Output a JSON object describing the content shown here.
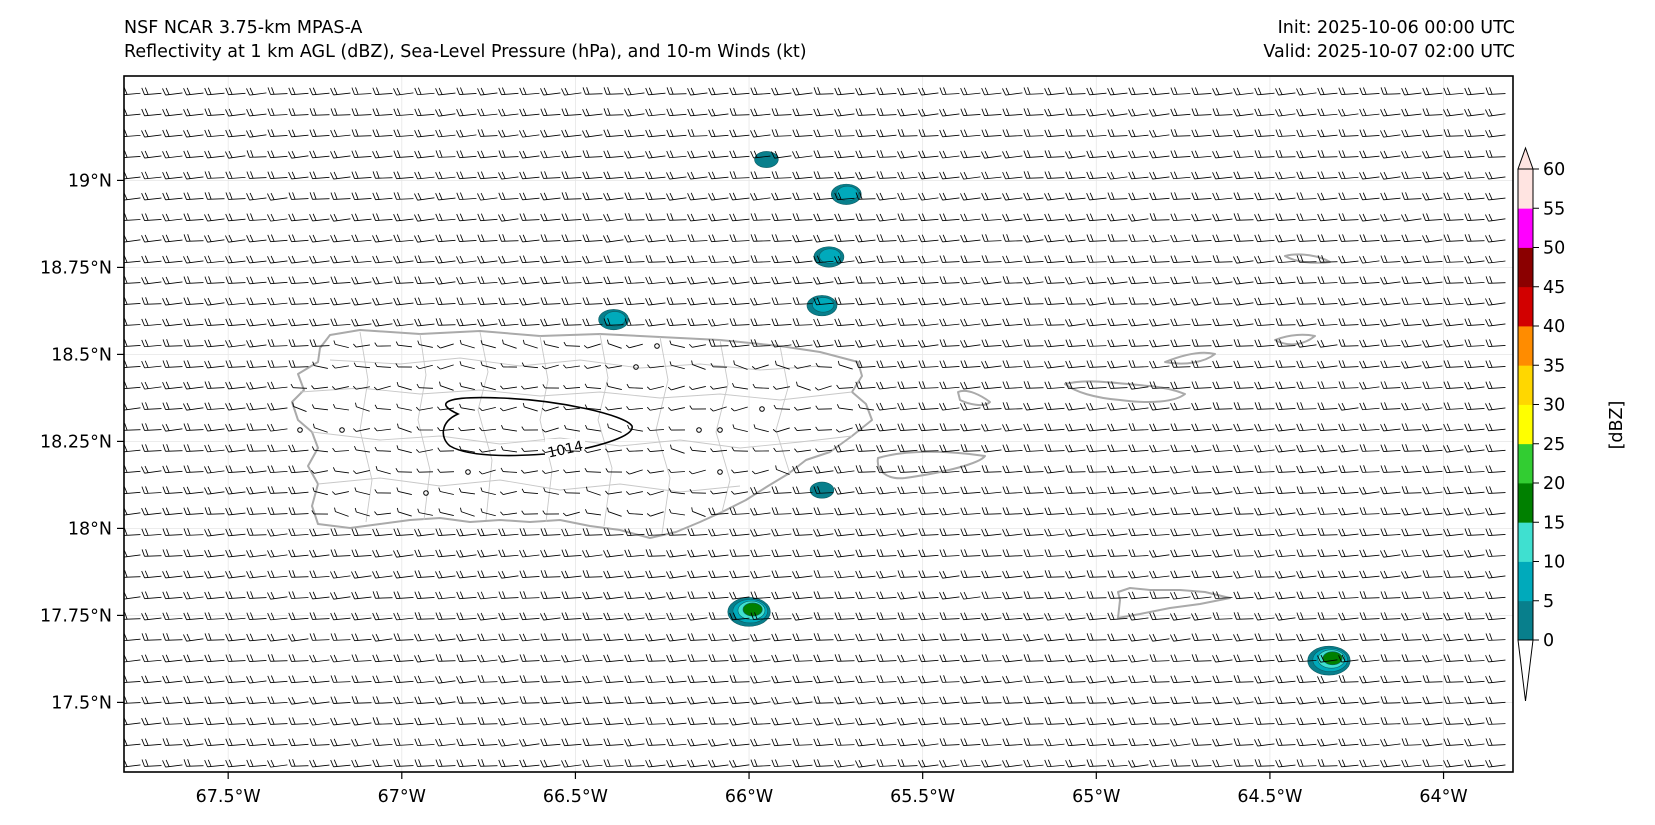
{
  "header": {
    "model": "NSF NCAR 3.75-km MPAS-A",
    "fields": "Reflectivity at 1 km AGL (dBZ), Sea-Level Pressure (hPa), and 10-m Winds (kt)",
    "init": "Init: 2025-10-06 00:00 UTC",
    "valid": "Valid: 2025-10-07 02:00 UTC"
  },
  "map": {
    "lon_range": [
      -67.8,
      -63.8
    ],
    "lat_range": [
      17.3,
      19.3
    ],
    "lon_ticks": [
      {
        "value": -67.5,
        "label": "67.5°W"
      },
      {
        "value": -67.0,
        "label": "67°W"
      },
      {
        "value": -66.5,
        "label": "66.5°W"
      },
      {
        "value": -66.0,
        "label": "66°W"
      },
      {
        "value": -65.5,
        "label": "65.5°W"
      },
      {
        "value": -65.0,
        "label": "65°W"
      },
      {
        "value": -64.5,
        "label": "64.5°W"
      },
      {
        "value": -64.0,
        "label": "64°W"
      }
    ],
    "lat_ticks": [
      {
        "value": 19.0,
        "label": "19°N"
      },
      {
        "value": 18.75,
        "label": "18.75°N"
      },
      {
        "value": 18.5,
        "label": "18.5°N"
      },
      {
        "value": 18.25,
        "label": "18.25°N"
      },
      {
        "value": 18.0,
        "label": "18°N"
      },
      {
        "value": 17.75,
        "label": "17.75°N"
      },
      {
        "value": 17.5,
        "label": "17.5°N"
      }
    ],
    "isobar_label": "1014",
    "coast_color": "#aaaaaa",
    "barb_color": "#000000"
  },
  "colorbar": {
    "label": "[dBZ]",
    "ticks": [
      "0",
      "5",
      "10",
      "15",
      "20",
      "25",
      "30",
      "35",
      "40",
      "45",
      "50",
      "55",
      "60"
    ],
    "colors": [
      "#087f8c",
      "#00aabb",
      "#3fe0d0",
      "#008000",
      "#32cd32",
      "#ffff00",
      "#ffd700",
      "#ff8c00",
      "#d20000",
      "#8b0000",
      "#ff00ff",
      "#ffe4e1"
    ]
  },
  "reflectivity_cells": [
    {
      "lon": -65.95,
      "lat": 19.06,
      "peak_dbz": 5
    },
    {
      "lon": -65.72,
      "lat": 18.96,
      "peak_dbz": 10
    },
    {
      "lon": -65.77,
      "lat": 18.78,
      "peak_dbz": 10
    },
    {
      "lon": -65.79,
      "lat": 18.64,
      "peak_dbz": 10
    },
    {
      "lon": -66.39,
      "lat": 18.6,
      "peak_dbz": 10
    },
    {
      "lon": -65.79,
      "lat": 18.11,
      "peak_dbz": 5
    },
    {
      "lon": -66.0,
      "lat": 17.76,
      "peak_dbz": 20
    },
    {
      "lon": -64.33,
      "lat": 17.62,
      "peak_dbz": 20
    }
  ]
}
